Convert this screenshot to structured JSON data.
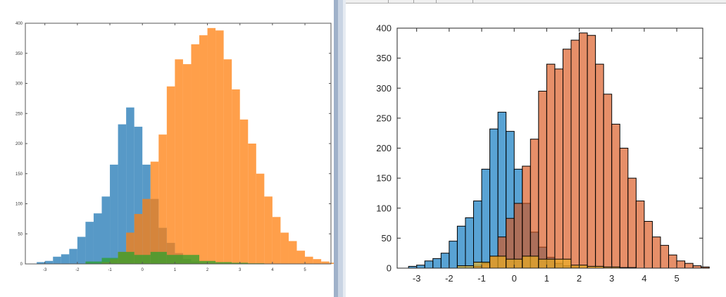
{
  "chart_data": [
    {
      "type": "bar",
      "variant": "overlapping histograms, transparent faces",
      "title": "",
      "xlabel": "",
      "ylabel": "",
      "xlim": [
        -3.6,
        5.8
      ],
      "ylim": [
        0,
        400
      ],
      "xticks": [
        -3,
        -2,
        -1,
        0,
        1,
        2,
        3,
        4,
        5
      ],
      "yticks": [
        0,
        50,
        100,
        150,
        200,
        250,
        300,
        350,
        400
      ],
      "xtick_labels": [
        "-3",
        "-2",
        "-1",
        "0",
        "1",
        "2",
        "3",
        "4",
        "5"
      ],
      "ytick_labels": [
        "0",
        "50",
        "100",
        "150",
        "200",
        "250",
        "300",
        "350",
        "400"
      ],
      "grid": false,
      "legend": "none",
      "bar_edges": false,
      "series": [
        {
          "color": "#1f77b4",
          "bin_width": 0.25,
          "x_start": -3.25,
          "values": [
            3,
            5,
            12,
            16,
            25,
            45,
            70,
            84,
            112,
            165,
            232,
            260,
            228,
            165,
            108,
            60,
            35,
            18,
            8,
            4,
            2
          ]
        },
        {
          "color": "#ff7f0e",
          "bin_width": 0.25,
          "x_start": -1.25,
          "values": [
            3,
            8,
            20,
            52,
            83,
            108,
            170,
            215,
            295,
            340,
            332,
            365,
            380,
            392,
            388,
            340,
            290,
            240,
            200,
            150,
            112,
            78,
            52,
            38,
            22,
            12,
            8,
            4,
            2
          ]
        },
        {
          "color": "#2ca02c",
          "bin_width": 0.5,
          "x_start": -1.75,
          "values": [
            4,
            10,
            20,
            15,
            20,
            15,
            15,
            5,
            3,
            2,
            1
          ]
        }
      ]
    },
    {
      "type": "bar",
      "variant": "overlapping histograms, transparent faces",
      "title": "",
      "xlabel": "",
      "ylabel": "",
      "xlim": [
        -3.6,
        5.8
      ],
      "ylim": [
        0,
        400
      ],
      "xticks": [
        -3,
        -2,
        -1,
        0,
        1,
        2,
        3,
        4,
        5
      ],
      "yticks": [
        0,
        50,
        100,
        150,
        200,
        250,
        300,
        350,
        400
      ],
      "xtick_labels": [
        "-3",
        "-2",
        "-1",
        "0",
        "1",
        "2",
        "3",
        "4",
        "5"
      ],
      "ytick_labels": [
        "0",
        "50",
        "100",
        "150",
        "200",
        "250",
        "300",
        "350",
        "400"
      ],
      "grid": false,
      "legend": "none",
      "bar_edges": true,
      "series": [
        {
          "color": "#0072bd",
          "bin_width": 0.25,
          "x_start": -3.25,
          "values": [
            3,
            5,
            12,
            16,
            25,
            45,
            70,
            84,
            112,
            165,
            232,
            260,
            228,
            165,
            108,
            60,
            35,
            18,
            8,
            4,
            2
          ]
        },
        {
          "color": "#d95319",
          "bin_width": 0.25,
          "x_start": -1.25,
          "values": [
            3,
            8,
            20,
            52,
            83,
            108,
            170,
            215,
            295,
            340,
            332,
            365,
            380,
            392,
            388,
            340,
            290,
            240,
            200,
            150,
            112,
            78,
            52,
            38,
            22,
            12,
            8,
            4,
            2
          ]
        },
        {
          "color": "#edb120",
          "bin_width": 0.5,
          "x_start": -1.75,
          "values": [
            4,
            10,
            20,
            15,
            20,
            15,
            15,
            5,
            3,
            2,
            1
          ]
        }
      ]
    }
  ]
}
